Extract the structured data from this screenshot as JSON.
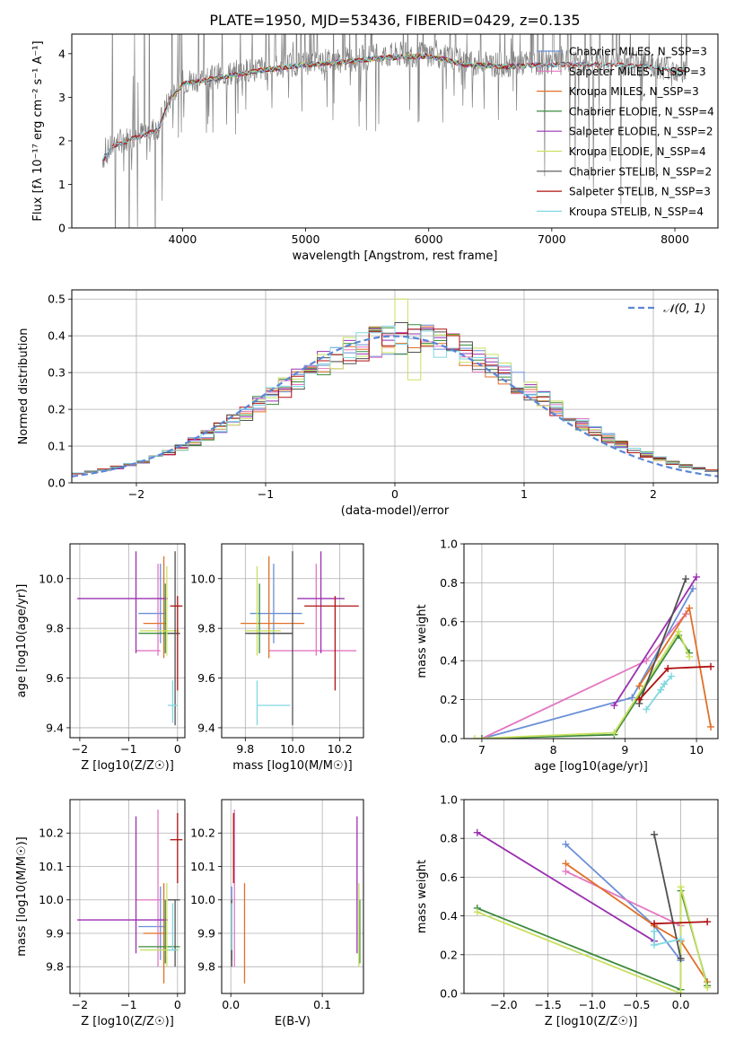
{
  "title": "PLATE=1950, MJD=53436, FIBERID=0429, z=0.135",
  "colors": {
    "Chabrier MILES": "#6a8fd8",
    "Salpeter MILES": "#e377c2",
    "Kroupa MILES": "#e07028",
    "Chabrier ELODIE": "#3c8a3c",
    "Salpeter ELODIE": "#9b30b0",
    "Kroupa ELODIE": "#c8e060",
    "Chabrier STELIB": "#505050",
    "Salpeter STELIB": "#b01010",
    "Kroupa STELIB": "#80d8e0",
    "gaussian": "#5b86d6",
    "grid": "#b0b0b0"
  },
  "chart_data": [
    {
      "id": "spectrum",
      "type": "line",
      "title": "PLATE=1950, MJD=53436, FIBERID=0429, z=0.135",
      "xlabel": "wavelength [Angstrom, rest frame]",
      "ylabel": "Flux [fλ 10⁻¹⁷ erg cm⁻² s⁻¹ A⁻¹]",
      "xlim": [
        3100,
        8350
      ],
      "ylim": [
        0,
        4.45
      ],
      "xticks": [
        4000,
        5000,
        6000,
        7000,
        8000
      ],
      "yticks": [
        0,
        1,
        2,
        3,
        4
      ],
      "legend_placement": "upper-right",
      "legend": [
        "Chabrier MILES, N_SSP=3",
        "Salpeter MILES, N_SSP=3",
        "Kroupa MILES, N_SSP=3",
        "Chabrier ELODIE, N_SSP=4",
        "Salpeter ELODIE, N_SSP=2",
        "Kroupa ELODIE, N_SSP=4",
        "Chabrier STELIB, N_SSP=2",
        "Salpeter STELIB, N_SSP=3",
        "Kroupa STELIB, N_SSP=4"
      ],
      "model_continuum": [
        [
          3350,
          1.6
        ],
        [
          3450,
          1.95
        ],
        [
          3600,
          2.1
        ],
        [
          3800,
          2.3
        ],
        [
          3900,
          3.0
        ],
        [
          4000,
          3.35
        ],
        [
          4300,
          3.5
        ],
        [
          4600,
          3.65
        ],
        [
          5000,
          3.8
        ],
        [
          5300,
          3.85
        ],
        [
          5600,
          3.95
        ],
        [
          6000,
          4.0
        ],
        [
          6300,
          3.8
        ],
        [
          6600,
          3.75
        ],
        [
          7000,
          3.8
        ],
        [
          7400,
          3.8
        ],
        [
          7800,
          3.75
        ],
        [
          8100,
          3.6
        ]
      ],
      "model_spans": {
        "MILES": [
          3350,
          7400
        ],
        "ELODIE": [
          3900,
          6800
        ],
        "STELIB": [
          3350,
          8100
        ]
      },
      "data_span": [
        3350,
        8100
      ]
    },
    {
      "id": "residuals",
      "type": "histogram",
      "xlabel": "(data-model)/error",
      "ylabel": "Normed distribution",
      "xlim": [
        -2.5,
        2.5
      ],
      "ylim": [
        0,
        0.525
      ],
      "xticks": [
        -2,
        -1,
        0,
        1,
        2
      ],
      "yticks": [
        0,
        0.1,
        0.2,
        0.3,
        0.4,
        0.5
      ],
      "legend": [
        "𝒩(0, 1)"
      ],
      "legend_placement": "upper-right",
      "bin_width": 0.1,
      "bin_start": -2.5,
      "reference_curve": "normal(0,1)",
      "features": {
        "Kroupa ELODIE": {
          "bin_0.0": 0.5,
          "bin_0.1": 0.28
        }
      }
    },
    {
      "id": "age_vs_Z",
      "type": "errorbar",
      "xlabel": "Z [log10(Z/Z☉)]",
      "ylabel": "age  [log10(age/yr)]",
      "xlim": [
        -2.2,
        0.15
      ],
      "ylim": [
        9.36,
        10.14
      ],
      "xticks": [
        -2,
        -1,
        0
      ],
      "yticks": [
        9.4,
        9.6,
        9.8,
        10.0
      ],
      "points": [
        {
          "model": "Chabrier MILES",
          "x": -0.35,
          "xerr": [
            0.45,
            0.1
          ],
          "y": 9.86,
          "yerr": [
            0.12,
            0.2
          ]
        },
        {
          "model": "Salpeter MILES",
          "x": -0.4,
          "xerr": [
            0.45,
            0.05
          ],
          "y": 9.71,
          "yerr": [
            0.02,
            0.35
          ]
        },
        {
          "model": "Kroupa MILES",
          "x": -0.28,
          "xerr": [
            0.42,
            0.05
          ],
          "y": 9.82,
          "yerr": [
            0.14,
            0.27
          ]
        },
        {
          "model": "Chabrier ELODIE",
          "x": -0.25,
          "xerr": [
            0.55,
            0.3
          ],
          "y": 9.78,
          "yerr": [
            0.08,
            0.2
          ]
        },
        {
          "model": "Salpeter ELODIE",
          "x": -0.85,
          "xerr": [
            1.2,
            0.65
          ],
          "y": 9.92,
          "yerr": [
            0.22,
            0.19
          ]
        },
        {
          "model": "Kroupa ELODIE",
          "x": -0.22,
          "xerr": [
            0.55,
            0.25
          ],
          "y": 9.79,
          "yerr": [
            0.1,
            0.26
          ]
        },
        {
          "model": "Chabrier STELIB",
          "x": -0.05,
          "xerr": [
            0.15,
            0.1
          ],
          "y": 9.78,
          "yerr": [
            0.37,
            0.33
          ]
        },
        {
          "model": "Salpeter STELIB",
          "x": 0.0,
          "xerr": [
            0.15,
            0.1
          ],
          "y": 9.89,
          "yerr": [
            0.34,
            0.04
          ]
        },
        {
          "model": "Kroupa STELIB",
          "x": -0.1,
          "xerr": [
            0.1,
            0.1
          ],
          "y": 9.49,
          "yerr": [
            0.07,
            0.1
          ]
        }
      ]
    },
    {
      "id": "age_vs_mass",
      "type": "errorbar",
      "xlabel": "mass [log10(M/M☉)]",
      "ylabel": "",
      "xlim": [
        9.7,
        10.3
      ],
      "ylim": [
        9.36,
        10.14
      ],
      "xticks": [
        9.8,
        10.0,
        10.2
      ],
      "yticks": [
        9.4,
        9.6,
        9.8,
        10.0
      ],
      "points": [
        {
          "model": "Chabrier MILES",
          "x": 9.92,
          "xerr": [
            0.1,
            0.12
          ],
          "y": 9.86,
          "yerr": [
            0.12,
            0.2
          ]
        },
        {
          "model": "Salpeter MILES",
          "x": 10.1,
          "xerr": [
            0.2,
            0.17
          ],
          "y": 9.71,
          "yerr": [
            0.02,
            0.35
          ]
        },
        {
          "model": "Kroupa MILES",
          "x": 9.9,
          "xerr": [
            0.12,
            0.15
          ],
          "y": 9.82,
          "yerr": [
            0.14,
            0.27
          ]
        },
        {
          "model": "Chabrier ELODIE",
          "x": 9.86,
          "xerr": [
            0.05,
            0.14
          ],
          "y": 9.78,
          "yerr": [
            0.08,
            0.2
          ]
        },
        {
          "model": "Salpeter ELODIE",
          "x": 10.12,
          "xerr": [
            0.1,
            0.1
          ],
          "y": 9.92,
          "yerr": [
            0.22,
            0.19
          ]
        },
        {
          "model": "Kroupa ELODIE",
          "x": 9.85,
          "xerr": [
            0.05,
            0.1
          ],
          "y": 9.79,
          "yerr": [
            0.1,
            0.26
          ]
        },
        {
          "model": "Chabrier STELIB",
          "x": 10.0,
          "xerr": [
            0.2,
            0.0
          ],
          "y": 9.78,
          "yerr": [
            0.37,
            0.33
          ]
        },
        {
          "model": "Salpeter STELIB",
          "x": 10.18,
          "xerr": [
            0.13,
            0.1
          ],
          "y": 9.89,
          "yerr": [
            0.34,
            0.04
          ]
        },
        {
          "model": "Kroupa STELIB",
          "x": 9.85,
          "xerr": [
            0.0,
            0.14
          ],
          "y": 9.49,
          "yerr": [
            0.08,
            0.1
          ]
        }
      ]
    },
    {
      "id": "massweight_vs_age",
      "type": "line",
      "xlabel": "age  [log10(age/yr)]",
      "ylabel": "mass weight",
      "xlim": [
        6.75,
        10.3
      ],
      "ylim": [
        0,
        1.0
      ],
      "xticks": [
        7,
        8,
        9,
        10
      ],
      "yticks": [
        0.0,
        0.2,
        0.4,
        0.6,
        0.8,
        1.0
      ],
      "grid": true,
      "series": [
        {
          "model": "Chabrier MILES",
          "x": [
            7.0,
            9.1,
            9.95
          ],
          "y": [
            0.0,
            0.21,
            0.77
          ]
        },
        {
          "model": "Salpeter MILES",
          "x": [
            7.0,
            9.3,
            9.85
          ],
          "y": [
            0.0,
            0.4,
            0.64
          ]
        },
        {
          "model": "Kroupa MILES",
          "x": [
            9.2,
            9.9,
            10.2
          ],
          "y": [
            0.27,
            0.67,
            0.06
          ]
        },
        {
          "model": "Chabrier ELODIE",
          "x": [
            7.0,
            8.85,
            9.75,
            9.9
          ],
          "y": [
            0.0,
            0.02,
            0.53,
            0.44
          ]
        },
        {
          "model": "Salpeter ELODIE",
          "x": [
            8.85,
            10.0
          ],
          "y": [
            0.17,
            0.83
          ]
        },
        {
          "model": "Kroupa ELODIE",
          "x": [
            6.9,
            8.85,
            9.75,
            9.9
          ],
          "y": [
            0.0,
            0.03,
            0.55,
            0.42
          ]
        },
        {
          "model": "Chabrier STELIB",
          "x": [
            9.2,
            9.85
          ],
          "y": [
            0.18,
            0.82
          ]
        },
        {
          "model": "Salpeter STELIB",
          "x": [
            9.2,
            9.6,
            10.2
          ],
          "y": [
            0.2,
            0.36,
            0.37
          ]
        },
        {
          "model": "Kroupa STELIB",
          "x": [
            9.3,
            9.5,
            9.55,
            9.65
          ],
          "y": [
            0.15,
            0.25,
            0.28,
            0.32
          ]
        }
      ]
    },
    {
      "id": "mass_vs_Z",
      "type": "errorbar",
      "xlabel": "Z [log10(Z/Z☉)]",
      "ylabel": "mass [log10(M/M☉)]",
      "xlim": [
        -2.2,
        0.15
      ],
      "ylim": [
        9.72,
        10.3
      ],
      "xticks": [
        -2,
        -1,
        0
      ],
      "yticks": [
        9.8,
        9.9,
        10.0,
        10.1,
        10.2
      ],
      "points": [
        {
          "model": "Chabrier MILES",
          "x": -0.35,
          "xerr": [
            0.45,
            0.1
          ],
          "y": 9.92,
          "yerr": [
            0.1,
            0.12
          ]
        },
        {
          "model": "Salpeter MILES",
          "x": -0.4,
          "xerr": [
            0.45,
            0.05
          ],
          "y": 10.0,
          "yerr": [
            0.2,
            0.27
          ]
        },
        {
          "model": "Kroupa MILES",
          "x": -0.28,
          "xerr": [
            0.42,
            0.05
          ],
          "y": 9.9,
          "yerr": [
            0.15,
            0.15
          ]
        },
        {
          "model": "Chabrier ELODIE",
          "x": -0.25,
          "xerr": [
            0.55,
            0.3
          ],
          "y": 9.86,
          "yerr": [
            0.05,
            0.14
          ]
        },
        {
          "model": "Salpeter ELODIE",
          "x": -0.85,
          "xerr": [
            1.2,
            0.65
          ],
          "y": 9.94,
          "yerr": [
            0.1,
            0.31
          ]
        },
        {
          "model": "Kroupa ELODIE",
          "x": -0.22,
          "xerr": [
            0.55,
            0.25
          ],
          "y": 9.85,
          "yerr": [
            0.05,
            0.2
          ]
        },
        {
          "model": "Chabrier STELIB",
          "x": -0.05,
          "xerr": [
            0.15,
            0.1
          ],
          "y": 10.0,
          "yerr": [
            0.2,
            0.0
          ]
        },
        {
          "model": "Salpeter STELIB",
          "x": 0.0,
          "xerr": [
            0.15,
            0.1
          ],
          "y": 10.18,
          "yerr": [
            0.13,
            0.08
          ]
        },
        {
          "model": "Kroupa STELIB",
          "x": -0.1,
          "xerr": [
            0.1,
            0.1
          ],
          "y": 9.85,
          "yerr": [
            0.0,
            0.14
          ]
        }
      ]
    },
    {
      "id": "mass_vs_EBV",
      "type": "errorbar",
      "xlabel": "E(B-V)",
      "ylabel": "",
      "xlim": [
        -0.01,
        0.145
      ],
      "ylim": [
        9.72,
        10.3
      ],
      "xticks": [
        0.0,
        0.1
      ],
      "yticks": [
        9.8,
        9.9,
        10.0,
        10.1,
        10.2
      ],
      "points": [
        {
          "model": "Chabrier MILES",
          "x": 0.001,
          "xerr": [
            0,
            0
          ],
          "y": 9.92,
          "yerr": [
            0.1,
            0.12
          ]
        },
        {
          "model": "Salpeter MILES",
          "x": 0.004,
          "xerr": [
            0,
            0
          ],
          "y": 10.0,
          "yerr": [
            0.2,
            0.27
          ]
        },
        {
          "model": "Kroupa MILES",
          "x": 0.015,
          "xerr": [
            0,
            0
          ],
          "y": 9.9,
          "yerr": [
            0.15,
            0.15
          ]
        },
        {
          "model": "Chabrier ELODIE",
          "x": 0.141,
          "xerr": [
            0,
            0
          ],
          "y": 9.86,
          "yerr": [
            0.05,
            0.14
          ]
        },
        {
          "model": "Salpeter ELODIE",
          "x": 0.138,
          "xerr": [
            0,
            0
          ],
          "y": 9.94,
          "yerr": [
            0.1,
            0.31
          ]
        },
        {
          "model": "Kroupa ELODIE",
          "x": 0.14,
          "xerr": [
            0,
            0
          ],
          "y": 9.85,
          "yerr": [
            0.05,
            0.2
          ]
        },
        {
          "model": "Chabrier STELIB",
          "x": 0.001,
          "xerr": [
            0,
            0
          ],
          "y": 10.0,
          "yerr": [
            0.2,
            0.0
          ]
        },
        {
          "model": "Salpeter STELIB",
          "x": 0.003,
          "xerr": [
            0,
            0
          ],
          "y": 10.18,
          "yerr": [
            0.13,
            0.08
          ]
        },
        {
          "model": "Kroupa STELIB",
          "x": 0.001,
          "xerr": [
            0,
            0
          ],
          "y": 9.85,
          "yerr": [
            0.0,
            0.14
          ]
        }
      ]
    },
    {
      "id": "massweight_vs_Z",
      "type": "line",
      "xlabel": "Z [log10(Z/Z☉)]",
      "ylabel": "mass weight",
      "xlim": [
        -2.45,
        0.42
      ],
      "ylim": [
        0,
        1.0
      ],
      "xticks": [
        -2.0,
        -1.5,
        -1.0,
        -0.5,
        0.0
      ],
      "yticks": [
        0.0,
        0.2,
        0.4,
        0.6,
        0.8,
        1.0
      ],
      "grid": true,
      "series": [
        {
          "model": "Chabrier MILES",
          "x": [
            -1.3,
            -0.3,
            0.0
          ],
          "y": [
            0.77,
            0.35,
            0.17
          ]
        },
        {
          "model": "Salpeter MILES",
          "x": [
            -1.3,
            0.0
          ],
          "y": [
            0.63,
            0.35
          ]
        },
        {
          "model": "Kroupa MILES",
          "x": [
            -1.3,
            -0.3,
            0.0,
            0.3
          ],
          "y": [
            0.67,
            0.35,
            0.27,
            0.06
          ]
        },
        {
          "model": "Chabrier ELODIE",
          "x": [
            -2.3,
            0.0,
            0.0,
            0.3
          ],
          "y": [
            0.44,
            0.02,
            0.53,
            0.04
          ]
        },
        {
          "model": "Salpeter ELODIE",
          "x": [
            -2.3,
            -0.3
          ],
          "y": [
            0.83,
            0.27
          ]
        },
        {
          "model": "Kroupa ELODIE",
          "x": [
            -2.3,
            0.0,
            0.0,
            0.3
          ],
          "y": [
            0.42,
            0.0,
            0.55,
            0.03
          ]
        },
        {
          "model": "Chabrier STELIB",
          "x": [
            -0.3,
            0.0
          ],
          "y": [
            0.82,
            0.18
          ]
        },
        {
          "model": "Salpeter STELIB",
          "x": [
            -0.3,
            0.3
          ],
          "y": [
            0.36,
            0.37
          ]
        },
        {
          "model": "Kroupa STELIB",
          "x": [
            -0.3,
            -0.3,
            0.0
          ],
          "y": [
            0.32,
            0.25,
            0.28
          ]
        }
      ]
    }
  ]
}
